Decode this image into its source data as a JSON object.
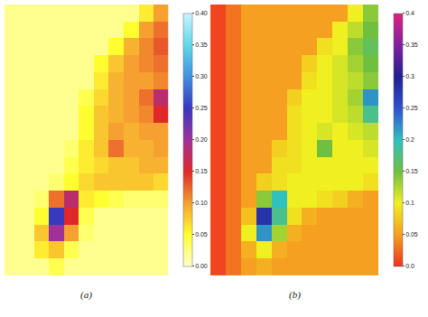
{
  "chart_data": [
    {
      "type": "heatmap",
      "title": "(a)",
      "tick_labels": false,
      "zlim": [
        0,
        0.4
      ],
      "zticks": [
        {
          "value": 0,
          "label": "0.00"
        },
        0.05,
        {
          "value": 0.1,
          "label": "0.10"
        },
        0.15,
        {
          "value": 0.2,
          "label": "0.20"
        },
        0.25,
        {
          "value": 0.3,
          "label": "0.30"
        },
        0.35,
        {
          "value": 0.4,
          "label": "0.40"
        }
      ],
      "colors": [
        "#ffffd0",
        "#ffff30",
        "#f5a030",
        "#e02828",
        "#a0309a",
        "#3838c0",
        "#4090e0",
        "#60d8e8",
        "#c8f4ff"
      ],
      "z": [
        [
          0.02,
          0.02,
          0.02,
          0.02,
          0.02,
          0.02,
          0.02,
          0.02,
          0.02,
          0.06,
          0.1
        ],
        [
          0.02,
          0.02,
          0.02,
          0.02,
          0.02,
          0.02,
          0.02,
          0.02,
          0.05,
          0.1,
          0.12
        ],
        [
          0.02,
          0.02,
          0.02,
          0.02,
          0.02,
          0.02,
          0.02,
          0.05,
          0.09,
          0.11,
          0.13
        ],
        [
          0.02,
          0.02,
          0.02,
          0.02,
          0.02,
          0.02,
          0.05,
          0.08,
          0.1,
          0.11,
          0.12
        ],
        [
          0.02,
          0.02,
          0.02,
          0.02,
          0.02,
          0.02,
          0.06,
          0.09,
          0.1,
          0.1,
          0.11
        ],
        [
          0.02,
          0.02,
          0.02,
          0.02,
          0.02,
          0.04,
          0.07,
          0.09,
          0.1,
          0.12,
          0.18
        ],
        [
          0.02,
          0.02,
          0.02,
          0.02,
          0.02,
          0.05,
          0.08,
          0.09,
          0.1,
          0.11,
          0.15
        ],
        [
          0.02,
          0.02,
          0.02,
          0.02,
          0.02,
          0.05,
          0.08,
          0.1,
          0.09,
          0.1,
          0.1
        ],
        [
          0.02,
          0.02,
          0.02,
          0.02,
          0.03,
          0.06,
          0.08,
          0.12,
          0.09,
          0.09,
          0.1
        ],
        [
          0.02,
          0.02,
          0.02,
          0.02,
          0.04,
          0.06,
          0.07,
          0.08,
          0.08,
          0.09,
          0.09
        ],
        [
          0.02,
          0.02,
          0.02,
          0.03,
          0.05,
          0.07,
          0.08,
          0.08,
          0.08,
          0.08,
          0.07
        ],
        [
          0.02,
          0.02,
          0.03,
          0.12,
          0.18,
          0.06,
          0.05,
          0.04,
          0.03,
          0.03,
          0.03
        ],
        [
          0.02,
          0.02,
          0.05,
          0.25,
          0.15,
          0.04,
          0.02,
          0.02,
          0.02,
          0.02,
          0.02
        ],
        [
          0.02,
          0.02,
          0.08,
          0.2,
          0.1,
          0.03,
          0.02,
          0.02,
          0.02,
          0.02,
          0.02
        ],
        [
          0.02,
          0.02,
          0.06,
          0.08,
          0.04,
          0.02,
          0.02,
          0.02,
          0.02,
          0.02,
          0.02
        ],
        [
          0.02,
          0.02,
          0.02,
          0.04,
          0.02,
          0.02,
          0.02,
          0.02,
          0.02,
          0.02,
          0.02
        ]
      ]
    },
    {
      "type": "heatmap",
      "title": "(b)",
      "tick_labels": false,
      "zlim": [
        0,
        0.4
      ],
      "zticks": [
        {
          "value": 0,
          "label": "0.0"
        },
        0.05,
        0.1,
        0.15,
        0.2,
        0.25,
        0.3,
        0.35,
        0.4
      ],
      "colors": [
        "#ee3020",
        "#f5a020",
        "#f0f020",
        "#70c040",
        "#30c0c0",
        "#3050d0",
        "#202090",
        "#8020a0",
        "#e02080"
      ],
      "z": [
        [
          0.01,
          0.03,
          0.05,
          0.05,
          0.05,
          0.05,
          0.05,
          0.05,
          0.05,
          0.1,
          0.14
        ],
        [
          0.01,
          0.03,
          0.05,
          0.05,
          0.05,
          0.05,
          0.05,
          0.05,
          0.1,
          0.12,
          0.15
        ],
        [
          0.01,
          0.03,
          0.05,
          0.05,
          0.05,
          0.05,
          0.05,
          0.09,
          0.1,
          0.14,
          0.16
        ],
        [
          0.01,
          0.03,
          0.05,
          0.05,
          0.05,
          0.05,
          0.08,
          0.1,
          0.11,
          0.13,
          0.15
        ],
        [
          0.01,
          0.03,
          0.05,
          0.05,
          0.05,
          0.05,
          0.09,
          0.1,
          0.11,
          0.12,
          0.14
        ],
        [
          0.01,
          0.03,
          0.05,
          0.05,
          0.05,
          0.08,
          0.1,
          0.1,
          0.11,
          0.13,
          0.22
        ],
        [
          0.01,
          0.03,
          0.05,
          0.05,
          0.05,
          0.09,
          0.1,
          0.1,
          0.11,
          0.12,
          0.18
        ],
        [
          0.01,
          0.03,
          0.05,
          0.05,
          0.05,
          0.09,
          0.1,
          0.11,
          0.1,
          0.11,
          0.12
        ],
        [
          0.01,
          0.03,
          0.05,
          0.05,
          0.08,
          0.09,
          0.1,
          0.15,
          0.1,
          0.1,
          0.11
        ],
        [
          0.01,
          0.03,
          0.05,
          0.05,
          0.09,
          0.09,
          0.1,
          0.1,
          0.1,
          0.1,
          0.1
        ],
        [
          0.01,
          0.03,
          0.05,
          0.08,
          0.09,
          0.1,
          0.1,
          0.1,
          0.1,
          0.1,
          0.09
        ],
        [
          0.01,
          0.03,
          0.05,
          0.14,
          0.2,
          0.1,
          0.1,
          0.09,
          0.08,
          0.06,
          0.05
        ],
        [
          0.01,
          0.03,
          0.07,
          0.28,
          0.18,
          0.09,
          0.06,
          0.05,
          0.05,
          0.05,
          0.05
        ],
        [
          0.01,
          0.03,
          0.1,
          0.22,
          0.13,
          0.06,
          0.05,
          0.05,
          0.05,
          0.05,
          0.05
        ],
        [
          0.01,
          0.03,
          0.06,
          0.1,
          0.06,
          0.05,
          0.05,
          0.05,
          0.05,
          0.05,
          0.05
        ],
        [
          0.01,
          0.03,
          0.05,
          0.06,
          0.05,
          0.05,
          0.05,
          0.05,
          0.05,
          0.05,
          0.05
        ]
      ]
    }
  ]
}
